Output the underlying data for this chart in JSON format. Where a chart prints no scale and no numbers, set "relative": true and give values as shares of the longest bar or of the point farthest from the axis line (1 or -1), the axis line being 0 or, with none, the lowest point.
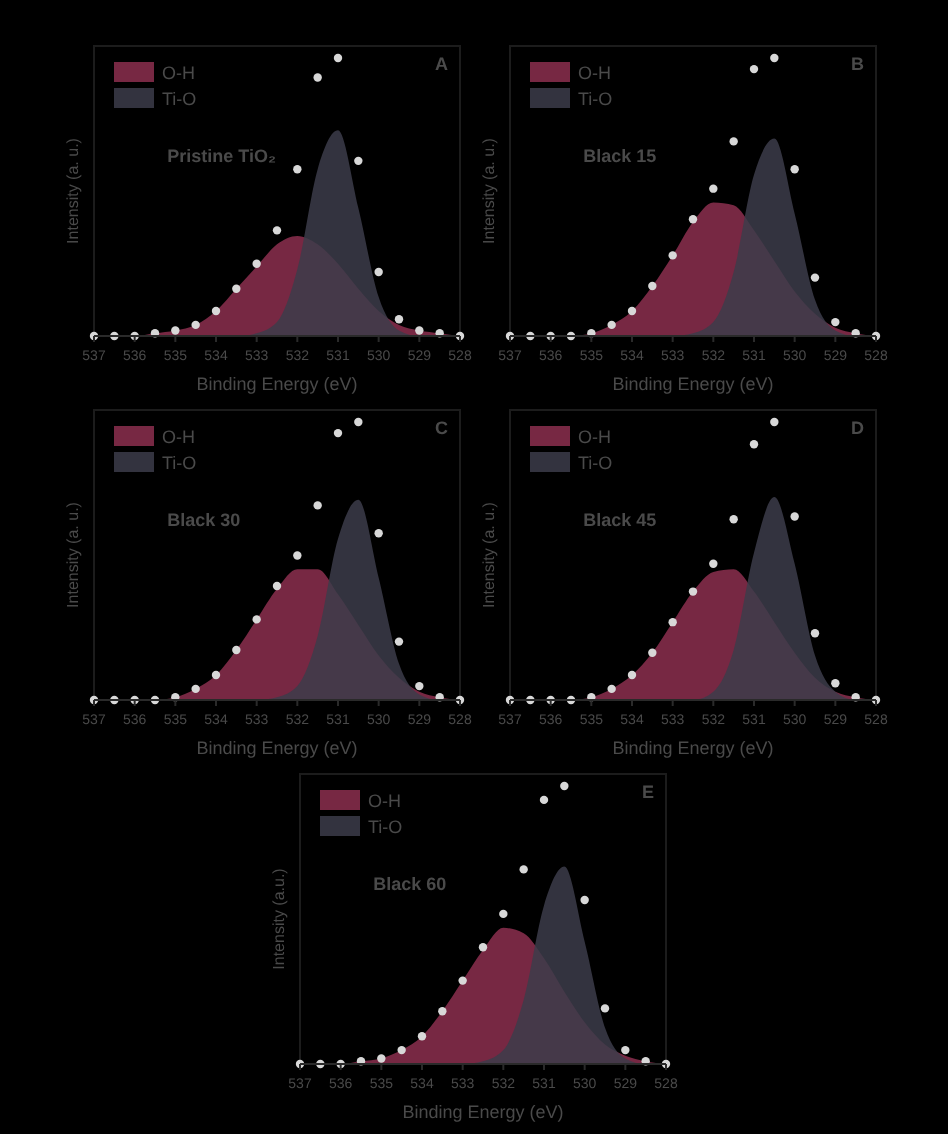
{
  "chart_data": [
    {
      "type": "area",
      "relative": true,
      "legend": "top left",
      "xlabel": "Binding Energy (eV)",
      "ylabel": "Intensity (a. u.)",
      "xlim": [
        537,
        528
      ],
      "xticks": [
        537,
        536,
        535,
        534,
        533,
        532,
        531,
        530,
        529,
        528
      ],
      "annotations": [
        "A",
        "Pristine TiO₂"
      ],
      "x": [
        537,
        536.5,
        536,
        535.5,
        535,
        534.5,
        534,
        533.5,
        533,
        532.5,
        532,
        531.5,
        531,
        530.5,
        530,
        529.5,
        529,
        528.5,
        528
      ],
      "series": [
        {
          "name": "O-H",
          "color": "#8c2f4f",
          "values": [
            0,
            0,
            0,
            0.01,
            0.02,
            0.04,
            0.09,
            0.17,
            0.25,
            0.33,
            0.36,
            0.33,
            0.26,
            0.17,
            0.09,
            0.04,
            0.02,
            0.01,
            0
          ]
        },
        {
          "name": "Ti-O",
          "color": "#3c3c4a",
          "values": [
            0,
            0,
            0,
            0,
            0,
            0,
            0,
            0,
            0.01,
            0.05,
            0.24,
            0.6,
            0.74,
            0.46,
            0.14,
            0.02,
            0,
            0,
            0
          ]
        },
        {
          "type": "scatter",
          "marker": "circle",
          "color": "#d8d8d8",
          "values": [
            0,
            0,
            0,
            0.01,
            0.02,
            0.04,
            0.09,
            0.17,
            0.26,
            0.38,
            0.6,
            0.93,
            1,
            0.63,
            0.23,
            0.06,
            0.02,
            0.01,
            0
          ]
        }
      ]
    },
    {
      "type": "area",
      "relative": true,
      "legend": "top left",
      "xlabel": "Binding Energy (eV)",
      "ylabel": "Intensity (a. u.)",
      "xlim": [
        537,
        528
      ],
      "xticks": [
        537,
        536,
        535,
        534,
        533,
        532,
        531,
        530,
        529,
        528
      ],
      "annotations": [
        "B",
        "Black 15"
      ],
      "x": [
        537,
        536.5,
        536,
        535.5,
        535,
        534.5,
        534,
        533.5,
        533,
        532.5,
        532,
        531.5,
        531,
        530.5,
        530,
        529.5,
        529,
        528.5,
        528
      ],
      "series": [
        {
          "name": "O-H",
          "color": "#8c2f4f",
          "values": [
            0,
            0,
            0,
            0,
            0.01,
            0.04,
            0.09,
            0.18,
            0.29,
            0.41,
            0.48,
            0.47,
            0.38,
            0.27,
            0.16,
            0.08,
            0.03,
            0.01,
            0
          ]
        },
        {
          "name": "Ti-O",
          "color": "#3c3c4a",
          "values": [
            0,
            0,
            0,
            0,
            0,
            0,
            0,
            0,
            0,
            0.01,
            0.05,
            0.23,
            0.58,
            0.71,
            0.44,
            0.13,
            0.02,
            0,
            0
          ]
        },
        {
          "type": "scatter",
          "marker": "circle",
          "color": "#d8d8d8",
          "values": [
            0,
            0,
            0,
            0,
            0.01,
            0.04,
            0.09,
            0.18,
            0.29,
            0.42,
            0.53,
            0.7,
            0.96,
            1,
            0.6,
            0.21,
            0.05,
            0.01,
            0
          ]
        }
      ]
    },
    {
      "type": "area",
      "relative": true,
      "legend": "top left",
      "xlabel": "Binding Energy (eV)",
      "ylabel": "Intensity (a. u.)",
      "xlim": [
        537,
        528
      ],
      "xticks": [
        537,
        536,
        535,
        534,
        533,
        532,
        531,
        530,
        529,
        528
      ],
      "annotations": [
        "C",
        "Black 30"
      ],
      "x": [
        537,
        536.5,
        536,
        535.5,
        535,
        534.5,
        534,
        533.5,
        533,
        532.5,
        532,
        531.5,
        531,
        530.5,
        530,
        529.5,
        529,
        528.5,
        528
      ],
      "series": [
        {
          "name": "O-H",
          "color": "#8c2f4f",
          "values": [
            0,
            0,
            0,
            0,
            0.01,
            0.04,
            0.09,
            0.18,
            0.29,
            0.4,
            0.47,
            0.47,
            0.38,
            0.27,
            0.16,
            0.08,
            0.03,
            0.01,
            0
          ]
        },
        {
          "name": "Ti-O",
          "color": "#3c3c4a",
          "values": [
            0,
            0,
            0,
            0,
            0,
            0,
            0,
            0,
            0,
            0.01,
            0.05,
            0.23,
            0.58,
            0.72,
            0.44,
            0.13,
            0.02,
            0,
            0
          ]
        },
        {
          "type": "scatter",
          "marker": "circle",
          "color": "#d8d8d8",
          "values": [
            0,
            0,
            0,
            0,
            0.01,
            0.04,
            0.09,
            0.18,
            0.29,
            0.41,
            0.52,
            0.7,
            0.96,
            1,
            0.6,
            0.21,
            0.05,
            0.01,
            0
          ]
        }
      ]
    },
    {
      "type": "area",
      "relative": true,
      "legend": "top left",
      "xlabel": "Binding Energy (eV)",
      "ylabel": "Intensity (a. u.)",
      "xlim": [
        537,
        528
      ],
      "xticks": [
        537,
        536,
        535,
        534,
        533,
        532,
        531,
        530,
        529,
        528
      ],
      "annotations": [
        "D",
        "Black 45"
      ],
      "x": [
        537,
        536.5,
        536,
        535.5,
        535,
        534.5,
        534,
        533.5,
        533,
        532.5,
        532,
        531.5,
        531,
        530.5,
        530,
        529.5,
        529,
        528.5,
        528
      ],
      "series": [
        {
          "name": "O-H",
          "color": "#8c2f4f",
          "values": [
            0,
            0,
            0,
            0,
            0.01,
            0.04,
            0.09,
            0.17,
            0.28,
            0.39,
            0.46,
            0.47,
            0.39,
            0.28,
            0.17,
            0.08,
            0.03,
            0.01,
            0
          ]
        },
        {
          "name": "Ti-O",
          "color": "#3c3c4a",
          "values": [
            0,
            0,
            0,
            0,
            0,
            0,
            0,
            0,
            0,
            0,
            0.03,
            0.18,
            0.53,
            0.73,
            0.49,
            0.16,
            0.03,
            0,
            0
          ]
        },
        {
          "type": "scatter",
          "marker": "circle",
          "color": "#d8d8d8",
          "values": [
            0,
            0,
            0,
            0,
            0.01,
            0.04,
            0.09,
            0.17,
            0.28,
            0.39,
            0.49,
            0.65,
            0.92,
            1,
            0.66,
            0.24,
            0.06,
            0.01,
            0
          ]
        }
      ]
    },
    {
      "type": "area",
      "relative": true,
      "legend": "top left",
      "xlabel": "Binding Energy (eV)",
      "ylabel": "Intensity (a.u.)",
      "xlim": [
        537,
        528
      ],
      "xticks": [
        537,
        536,
        535,
        534,
        533,
        532,
        531,
        530,
        529,
        528
      ],
      "annotations": [
        "E",
        "Black 60"
      ],
      "x": [
        537,
        536.5,
        536,
        535.5,
        535,
        534.5,
        534,
        533.5,
        533,
        532.5,
        532,
        531.5,
        531,
        530.5,
        530,
        529.5,
        529,
        528.5,
        528
      ],
      "series": [
        {
          "name": "O-H",
          "color": "#8c2f4f",
          "values": [
            0,
            0,
            0,
            0.01,
            0.02,
            0.05,
            0.1,
            0.19,
            0.3,
            0.41,
            0.49,
            0.47,
            0.38,
            0.26,
            0.15,
            0.07,
            0.03,
            0.01,
            0
          ]
        },
        {
          "name": "Ti-O",
          "color": "#3c3c4a",
          "values": [
            0,
            0,
            0,
            0,
            0,
            0,
            0,
            0,
            0,
            0.01,
            0.05,
            0.23,
            0.57,
            0.71,
            0.44,
            0.13,
            0.02,
            0,
            0
          ]
        },
        {
          "type": "scatter",
          "marker": "circle",
          "color": "#d8d8d8",
          "values": [
            0,
            0,
            0,
            0.01,
            0.02,
            0.05,
            0.1,
            0.19,
            0.3,
            0.42,
            0.54,
            0.7,
            0.95,
            1,
            0.59,
            0.2,
            0.05,
            0.01,
            0
          ]
        }
      ]
    }
  ]
}
